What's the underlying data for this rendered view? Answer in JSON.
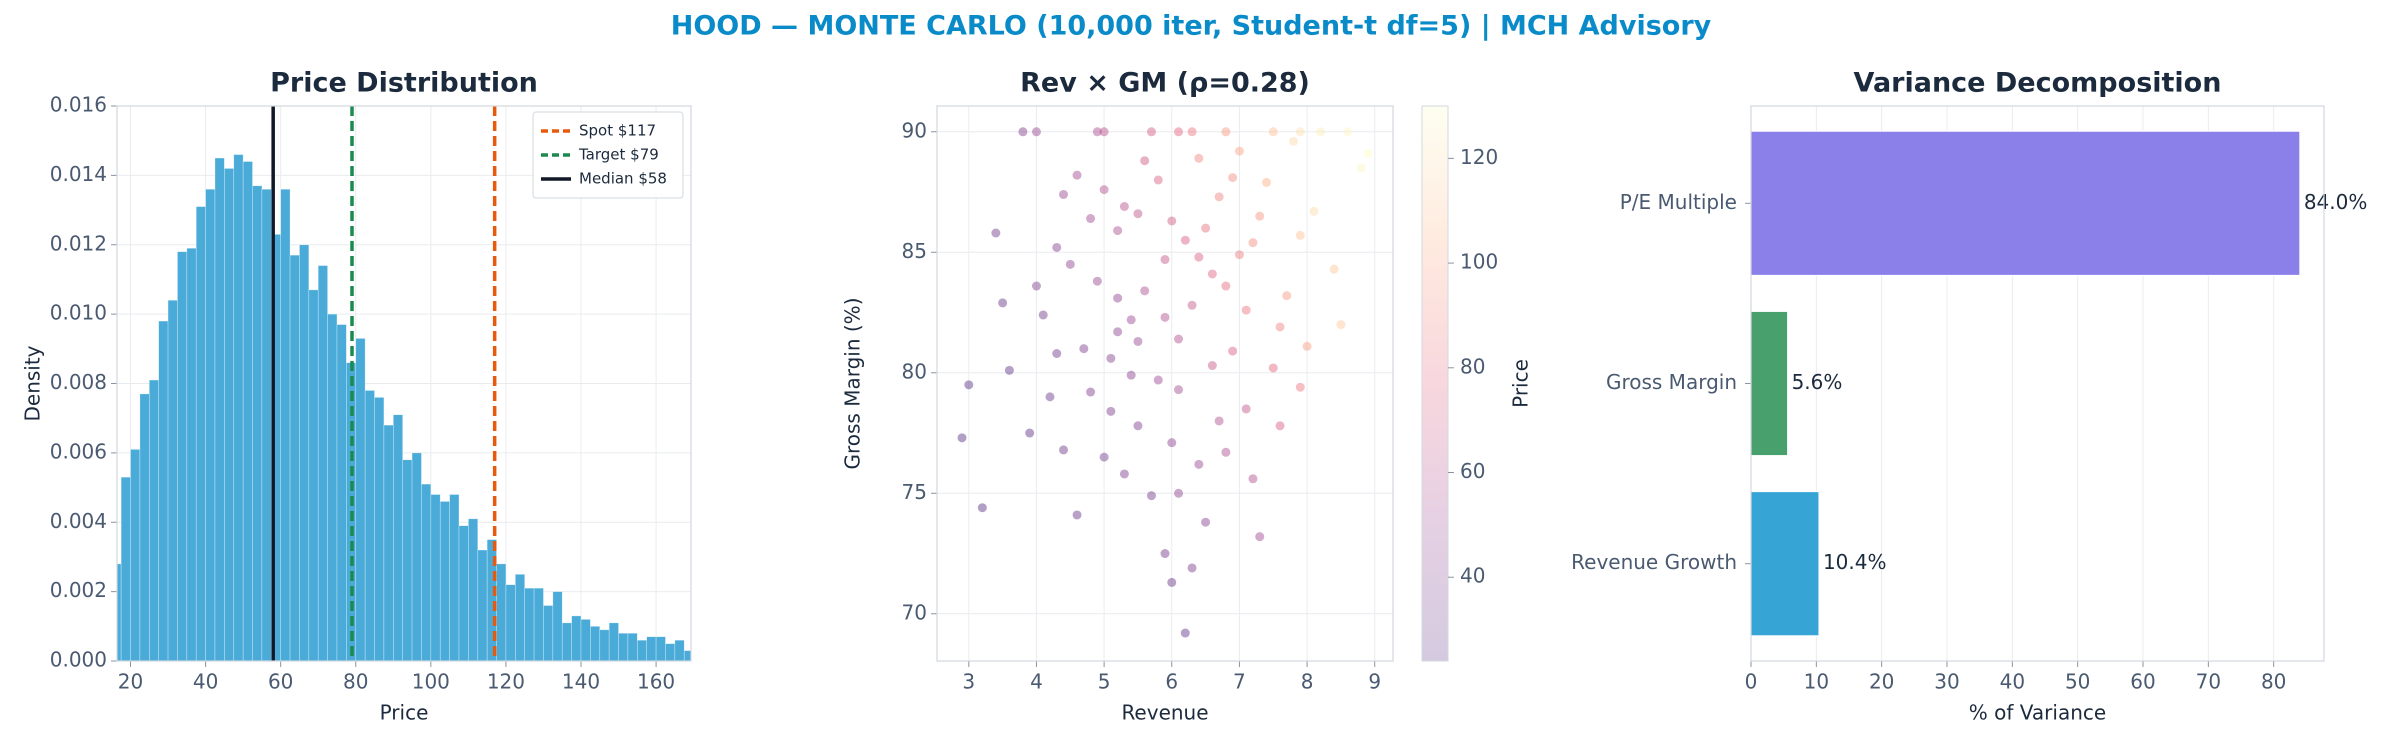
{
  "title": "HOOD — MONTE CARLO (10,000 iter, Student-t df=5) | MCH Advisory",
  "chart_data": [
    {
      "type": "histogram",
      "title": "Price Distribution",
      "x_label": "Price",
      "y_label": "Density",
      "color": "#4aabd9",
      "grid": true,
      "legend": "upper right",
      "bins": [
        15,
        17.5,
        20,
        22.5,
        25,
        27.5,
        30,
        32.5,
        35,
        37.5,
        40,
        42.5,
        45,
        47.5,
        50,
        52.5,
        55,
        57.5,
        60,
        62.5,
        65,
        67.5,
        70,
        72.5,
        75,
        77.5,
        80,
        82.5,
        85,
        87.5,
        90,
        92.5,
        95,
        97.5,
        100,
        102.5,
        105,
        107.5,
        110,
        112.5,
        115,
        117.5,
        120,
        122.5,
        125,
        127.5,
        130,
        132.5,
        135,
        137.5,
        140,
        142.5,
        145,
        147.5,
        150,
        152.5,
        155,
        157.5,
        160,
        162.5,
        165,
        167.5,
        170
      ],
      "values": [
        0.0028,
        0.0053,
        0.0061,
        0.0077,
        0.0081,
        0.0098,
        0.0104,
        0.0118,
        0.0119,
        0.0131,
        0.0136,
        0.0145,
        0.0142,
        0.0146,
        0.0144,
        0.0137,
        0.0136,
        0.0123,
        0.0136,
        0.0117,
        0.012,
        0.0107,
        0.0114,
        0.01,
        0.0097,
        0.0086,
        0.0093,
        0.0078,
        0.0076,
        0.0068,
        0.0071,
        0.0058,
        0.006,
        0.0051,
        0.0048,
        0.0046,
        0.0048,
        0.0039,
        0.0041,
        0.0032,
        0.0035,
        0.0028,
        0.0022,
        0.0025,
        0.0021,
        0.0021,
        0.0016,
        0.002,
        0.0011,
        0.0013,
        0.0012,
        0.001,
        0.0009,
        0.0011,
        0.0008,
        0.0008,
        0.0006,
        0.0007,
        0.0007,
        0.0005,
        0.0006,
        0.0003
      ],
      "vlines": [
        {
          "name": "Spot $117",
          "value": 117,
          "color": "#e8590c",
          "dashed": true
        },
        {
          "name": "Target $79",
          "value": 79,
          "color": "#1a8a4e",
          "dashed": true
        },
        {
          "name": "Median $58",
          "value": 58,
          "color": "#111827",
          "dashed": false
        }
      ],
      "xlim": [
        16.4,
        169.3
      ],
      "xticks": [
        20,
        40,
        60,
        80,
        100,
        120,
        140,
        160
      ],
      "ylim": [
        0,
        0.016
      ],
      "yticks": [
        {
          "value": 0,
          "label": "0.000"
        },
        {
          "value": 0.002,
          "label": "0.002"
        },
        {
          "value": 0.004,
          "label": "0.004"
        },
        {
          "value": 0.006,
          "label": "0.006"
        },
        {
          "value": 0.008,
          "label": "0.008"
        },
        {
          "value": 0.01,
          "label": "0.010"
        },
        {
          "value": 0.012,
          "label": "0.012"
        },
        {
          "value": 0.014,
          "label": "0.014"
        },
        {
          "value": 0.016,
          "label": "0.016"
        }
      ]
    },
    {
      "type": "scatter",
      "title": "Rev × GM (ρ=0.28)",
      "x_label": "Revenue",
      "y_label": "Gross Margin (%)",
      "colorbar_label": "Price",
      "grid": true,
      "colormap": [
        "#3b0f70",
        "#8c2981",
        "#de4968",
        "#fe9f6d",
        "#fcfdbf"
      ],
      "x": [
        5.2,
        6.1,
        4.8,
        7.3,
        5.9,
        6.6,
        4.3,
        5.5,
        6.9,
        7.8,
        5.0,
        6.3,
        7.5,
        8.2,
        4.1,
        3.6,
        5.7,
        6.4,
        7.1,
        8.4,
        6.0,
        5.3,
        4.6,
        6.8,
        7.6,
        5.1,
        6.2,
        4.9,
        5.8,
        7.0,
        3.9,
        6.5,
        5.4,
        6.7,
        8.8,
        2.9,
        3.2,
        4.4,
        7.9,
        5.6,
        6.1,
        4.0,
        8.6,
        7.2,
        5.9,
        6.3,
        4.7,
        5.2,
        6.9,
        7.4,
        3.4,
        4.2,
        6.0,
        6.6,
        5.5,
        7.7,
        8.1,
        6.2,
        5.0,
        4.5,
        6.4,
        7.0,
        5.7,
        6.8,
        3.8,
        7.3,
        5.3,
        6.1,
        4.8,
        8.0,
        5.6,
        6.5,
        4.3,
        7.1,
        5.8,
        3.5,
        6.7,
        5.4,
        7.9,
        8.9,
        4.6,
        6.3,
        5.1,
        6.0,
        7.5,
        4.9,
        7.9,
        5.2,
        6.8,
        4.0,
        5.9,
        6.4,
        5.5,
        7.2,
        4.4,
        6.1,
        5.0,
        7.6,
        8.5,
        3.0
      ],
      "y": [
        83.1,
        81.4,
        79.2,
        86.5,
        84.7,
        80.3,
        85.2,
        77.8,
        88.1,
        89.6,
        90,
        90,
        90,
        90,
        82.4,
        80.1,
        74.9,
        76.2,
        78.5,
        84.3,
        71.3,
        86.9,
        88.2,
        83.6,
        81.9,
        80.6,
        85.5,
        83.8,
        79.7,
        84.9,
        77.5,
        73.8,
        82.2,
        87.3,
        88.5,
        77.3,
        74.4,
        76.8,
        79.4,
        88.8,
        90,
        90,
        90,
        75.6,
        72.5,
        82.8,
        81.0,
        85.9,
        80.9,
        87.9,
        85.8,
        79.0,
        77.1,
        84.1,
        81.3,
        83.2,
        86.7,
        69.2,
        87.6,
        84.5,
        88.9,
        89.2,
        90,
        90,
        90,
        73.2,
        75.8,
        79.3,
        86.4,
        81.1,
        83.4,
        86.0,
        80.8,
        82.6,
        88.0,
        82.9,
        78.0,
        79.9,
        85.7,
        89.1,
        74.1,
        71.9,
        78.4,
        86.3,
        80.2,
        90,
        90,
        81.7,
        76.7,
        83.6,
        82.3,
        84.8,
        86.6,
        85.4,
        87.4,
        75.0,
        76.5,
        77.8,
        82.0,
        79.5
      ],
      "c": [
        45,
        58,
        38,
        95,
        65,
        66,
        42,
        40,
        92,
        118,
        60,
        84,
        110,
        125,
        33,
        28,
        36,
        48,
        64,
        112,
        30,
        60,
        52,
        80,
        88,
        42,
        72,
        48,
        50,
        86,
        27,
        42,
        50,
        88,
        128,
        25,
        24,
        32,
        84,
        68,
        78,
        48,
        128,
        58,
        34,
        64,
        40,
        56,
        72,
        104,
        35,
        32,
        44,
        76,
        48,
        96,
        118,
        28,
        58,
        46,
        90,
        100,
        70,
        96,
        40,
        52,
        38,
        54,
        52,
        98,
        56,
        82,
        35,
        84,
        74,
        30,
        58,
        44,
        110,
        130,
        30,
        38,
        38,
        70,
        78,
        56,
        120,
        46,
        56,
        38,
        58,
        74,
        62,
        92,
        48,
        44,
        36,
        72,
        112,
        24
      ],
      "xlim": [
        2.53,
        9.27
      ],
      "xticks": [
        3,
        4,
        5,
        6,
        7,
        8,
        9
      ],
      "ylim": [
        68.04,
        91.07
      ],
      "yticks": [
        70,
        75,
        80,
        85,
        90
      ],
      "clim": [
        24,
        130
      ],
      "cticks": [
        40,
        60,
        80,
        100,
        120
      ]
    },
    {
      "type": "barh",
      "title": "Variance Decomposition",
      "x_label": "% of Variance",
      "grid": true,
      "categories": [
        "P/E Multiple",
        "Gross Margin",
        "Revenue Growth"
      ],
      "values": [
        84.0,
        5.6,
        10.4
      ],
      "value_labels": [
        "84.0%",
        "5.6%",
        "10.4%"
      ],
      "colors": [
        "#8b80ea",
        "#48a06c",
        "#36a5d6"
      ],
      "xlim": [
        0,
        87.7
      ],
      "xticks": [
        0,
        10,
        20,
        30,
        40,
        50,
        60,
        70,
        80
      ]
    }
  ]
}
